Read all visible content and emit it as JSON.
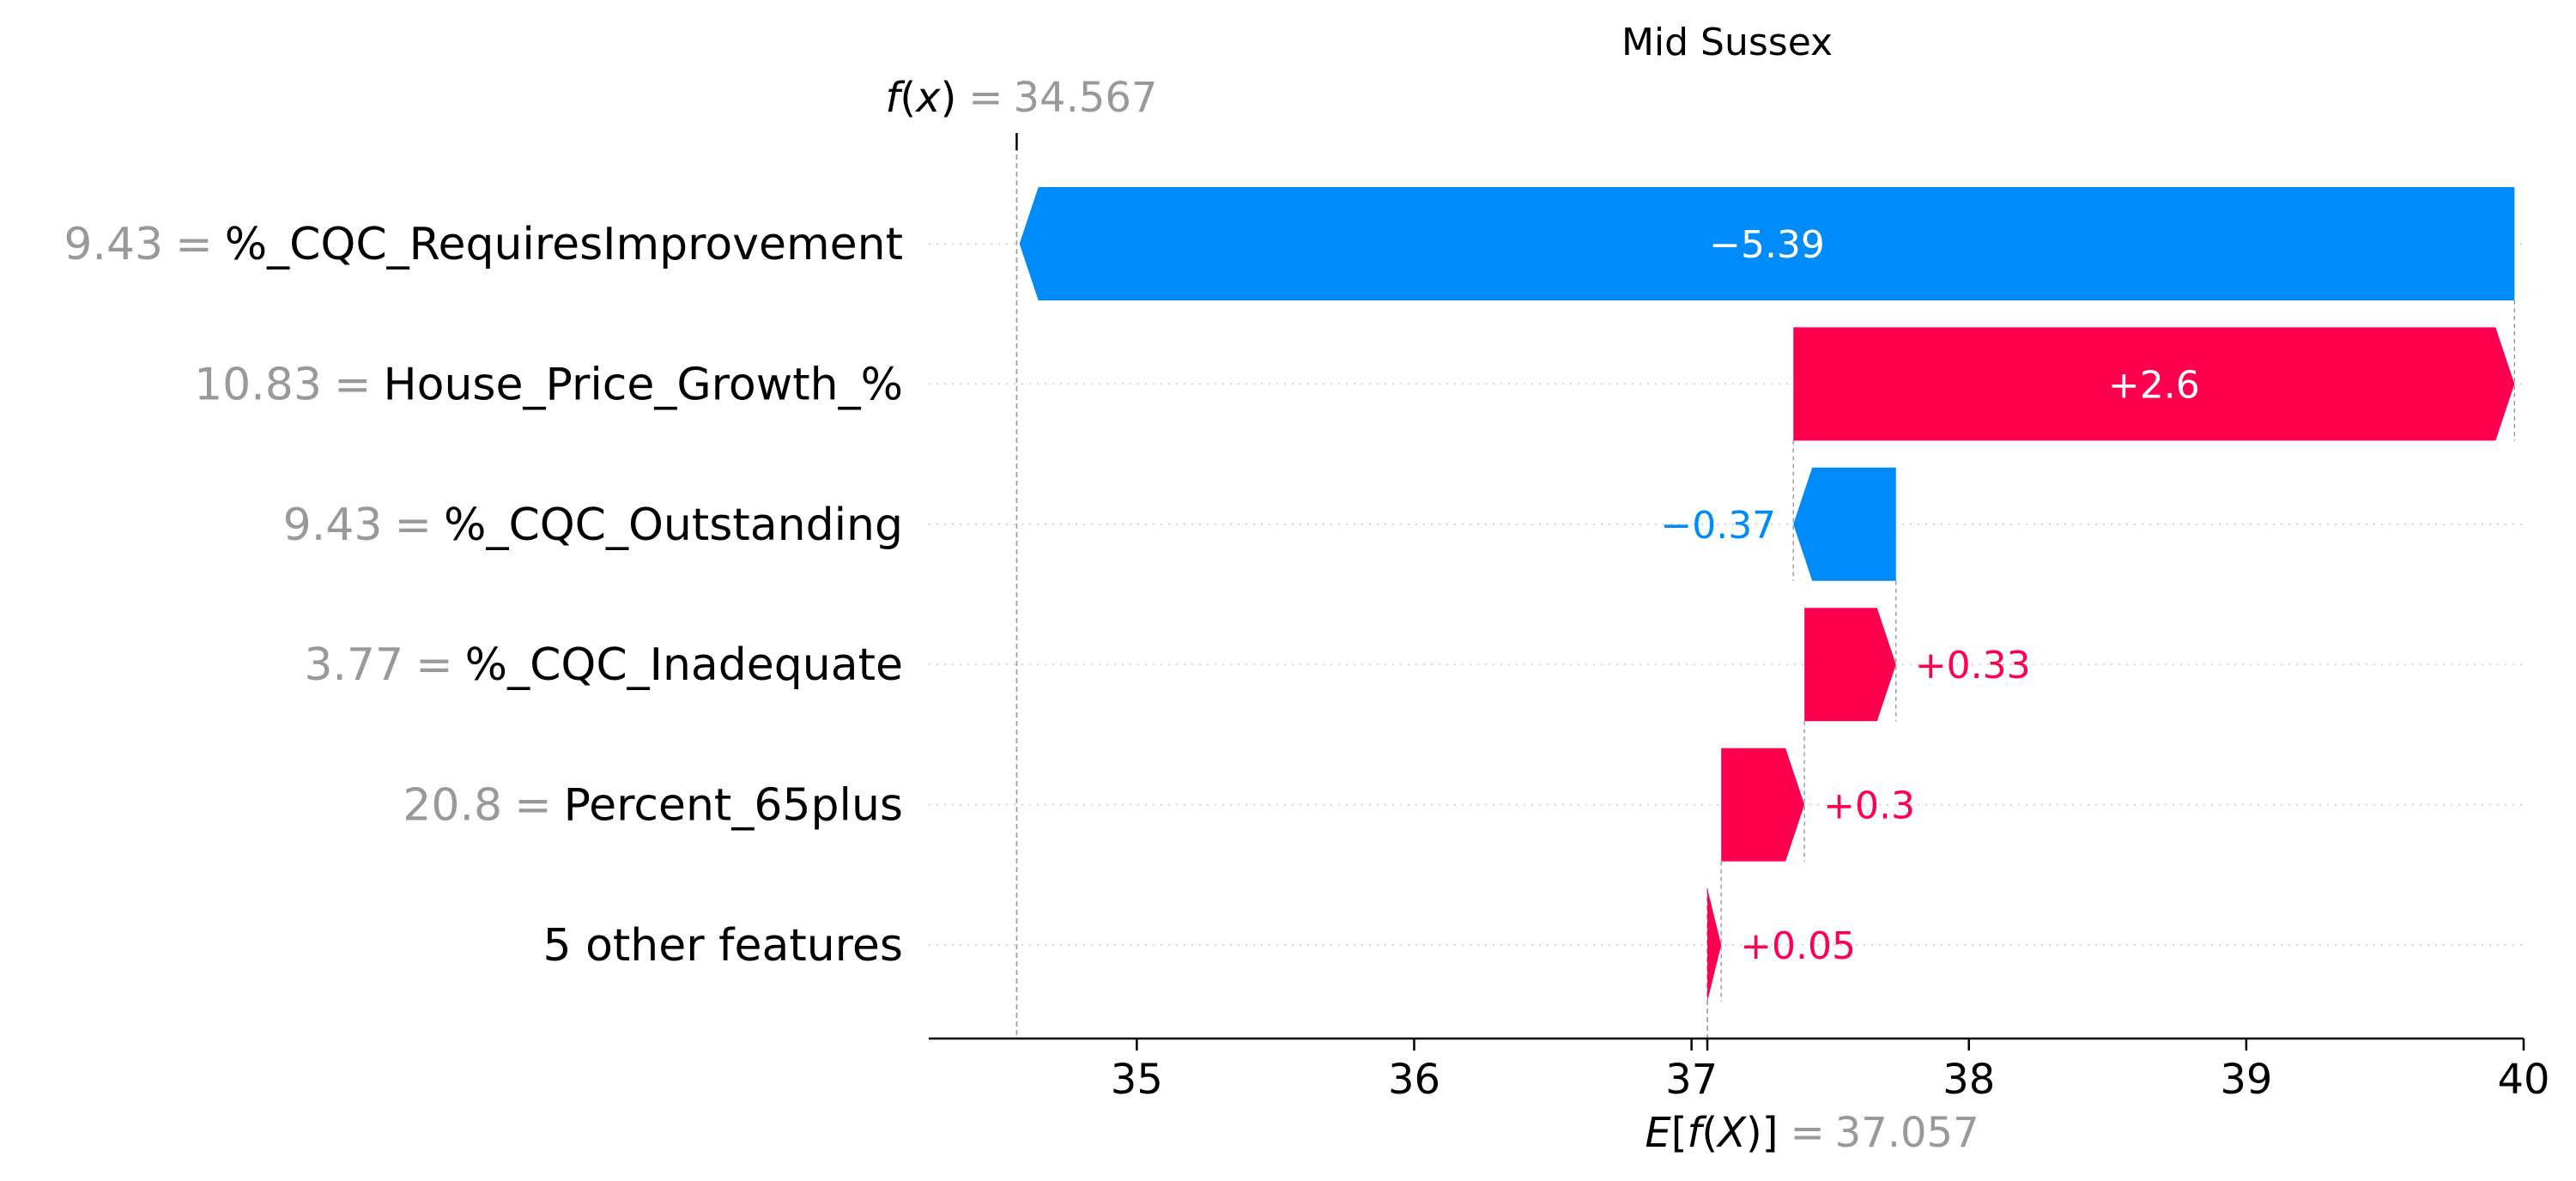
{
  "chart_data": {
    "type": "waterfall",
    "title": "Mid Sussex",
    "fx": {
      "label_math": "f(x)",
      "equals": "=",
      "value": "34.567",
      "numeric": 34.567
    },
    "efx": {
      "label_math": "E[f(X)]",
      "equals": "=",
      "value": "37.057",
      "numeric": 37.057
    },
    "xlim": [
      34.25,
      40.0
    ],
    "xticks": [
      35,
      36,
      37,
      38,
      39,
      40
    ],
    "xtick_labels": [
      "35",
      "36",
      "37",
      "38",
      "39",
      "40"
    ],
    "features": [
      {
        "value_text": "9.43",
        "name": "%_CQC_RequiresImprovement",
        "shap": -5.39,
        "label": "−5.39",
        "label_inside": true
      },
      {
        "value_text": "10.83",
        "name": "House_Price_Growth_%",
        "shap": 2.6,
        "label": "+2.6",
        "label_inside": true
      },
      {
        "value_text": "9.43",
        "name": "%_CQC_Outstanding",
        "shap": -0.37,
        "label": "−0.37",
        "label_inside": false
      },
      {
        "value_text": "3.77",
        "name": "%_CQC_Inadequate",
        "shap": 0.33,
        "label": "+0.33",
        "label_inside": false
      },
      {
        "value_text": "20.8",
        "name": "Percent_65plus",
        "shap": 0.3,
        "label": "+0.3",
        "label_inside": false
      },
      {
        "value_text": "",
        "name": "5 other features",
        "shap": 0.05,
        "label": "+0.05",
        "label_inside": false
      }
    ],
    "colors": {
      "positive": "#ff0051",
      "negative": "#008bfb",
      "text": "#000000",
      "muted": "#999999",
      "grid": "#cccccc",
      "axis": "#000000"
    }
  }
}
